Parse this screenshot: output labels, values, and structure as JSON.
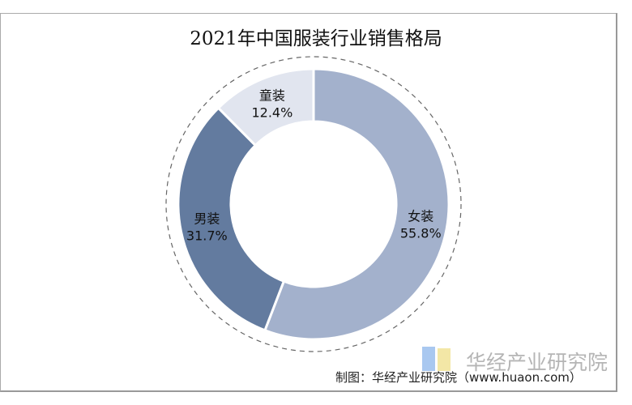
{
  "chart_data": {
    "type": "pie",
    "title": "2021年中国服装行业销售格局",
    "slices": [
      {
        "label": "女装",
        "value": 55.8,
        "display": "55.8%",
        "color": "#a3b1cc"
      },
      {
        "label": "男装",
        "value": 31.7,
        "display": "31.7%",
        "color": "#637b9f"
      },
      {
        "label": "童装",
        "value": 12.4,
        "display": "12.4%",
        "color": "#e1e5ef"
      }
    ],
    "donut": true
  },
  "watermark": "华经产业研究院",
  "source": "制图：华经产业研究院（www.huaon.com）"
}
